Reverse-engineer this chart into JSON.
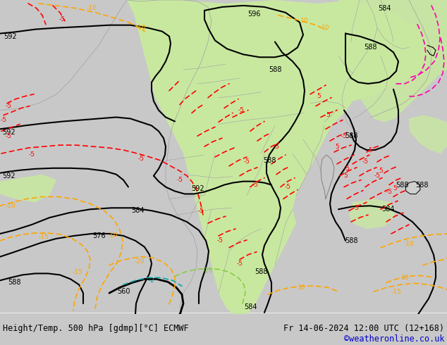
{
  "title_left": "Height/Temp. 500 hPa [gdmp][°C] ECMWF",
  "title_right": "Fr 14-06-2024 12:00 UTC (12+168)",
  "credit": "©weatheronline.co.uk",
  "fig_width": 6.34,
  "fig_height": 4.9,
  "dpi": 100,
  "bg_color": "#c8c8c8",
  "map_bg_color": "#c8c8c8",
  "green_fill": "#c8e8a0",
  "bottom_bg": "#e0e0e0",
  "text_color": "#000000",
  "credit_color": "#0000cc",
  "border_color": "#a0a0a0",
  "black_line_lw": 1.5,
  "red_line_lw": 1.2,
  "orange_line_lw": 1.2
}
